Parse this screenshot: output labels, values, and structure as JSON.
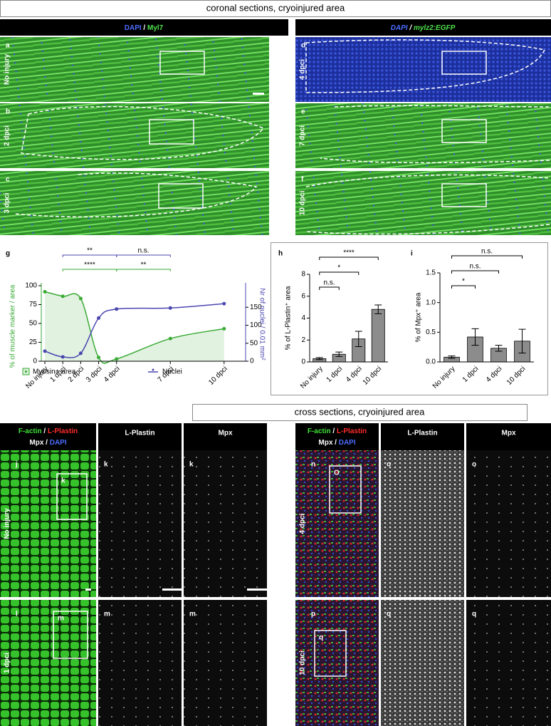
{
  "coronal": {
    "title": "coronal sections, cryoinjured area",
    "left_header": [
      "DAPI",
      " / ",
      "Myl7"
    ],
    "right_header": [
      "DAPI",
      " / ",
      "mylz2:EGFP"
    ],
    "panels": [
      {
        "letter": "a",
        "label": "No injury"
      },
      {
        "letter": "b",
        "label": "2 dpci"
      },
      {
        "letter": "c",
        "label": "3 dpci"
      },
      {
        "letter": "d",
        "label": "4 dpci"
      },
      {
        "letter": "e",
        "label": "7 dpci"
      },
      {
        "letter": "f",
        "label": "10 dpci"
      }
    ]
  },
  "chart_data": [
    {
      "type": "line",
      "panel": "g",
      "ylabel": "% of muscle marker / area",
      "y2label": "Nr of nuclei / 0.01 mm²",
      "x": [
        0,
        1,
        2,
        3,
        4,
        7,
        10
      ],
      "xlim": [
        -0.2,
        11.2
      ],
      "xticks": [
        {
          "value": 0,
          "label": "No injury"
        },
        {
          "value": 1,
          "label": "1 dpci"
        },
        {
          "value": 2,
          "label": "2 dpci"
        },
        {
          "value": 3,
          "label": "3 dpci"
        },
        {
          "value": 4,
          "label": "4 dpci"
        },
        {
          "value": 7,
          "label": "7 dpci"
        },
        {
          "value": 10,
          "label": "10 dpci"
        }
      ],
      "ylim": [
        0,
        100
      ],
      "yticks": [
        0,
        25,
        50,
        75,
        100
      ],
      "y2lim": [
        0,
        210
      ],
      "y2ticks": [
        0,
        50,
        100,
        150
      ],
      "series": [
        {
          "name": "Myosin+ area",
          "color": "#3aaa35",
          "values": [
            92,
            86,
            83,
            5,
            3,
            30,
            43
          ]
        },
        {
          "name": "Nuclei",
          "color": "#4b47b0",
          "axis": "y2",
          "values": [
            28,
            12,
            22,
            120,
            145,
            148,
            160
          ]
        }
      ],
      "annotations": [
        {
          "text": "**",
          "x": [
            1,
            4
          ],
          "color": "#4b47b0"
        },
        {
          "text": "n.s.",
          "x": [
            4,
            7
          ],
          "color": "#4b47b0"
        },
        {
          "text": "****",
          "x": [
            1,
            4
          ],
          "color": "#3aaa35"
        },
        {
          "text": "**",
          "x": [
            4,
            7
          ],
          "color": "#3aaa35"
        }
      ]
    },
    {
      "type": "bar",
      "panel": "h",
      "ylabel": "% of L-Plastin⁺ area",
      "categories": [
        "No injury",
        "1 dpci",
        "4 dpci",
        "10 dpci"
      ],
      "values": [
        0.3,
        0.7,
        2.1,
        4.8
      ],
      "errors": [
        0.1,
        0.2,
        0.7,
        0.4
      ],
      "color": "#8c8c8c",
      "ylim": [
        0,
        8
      ],
      "yticks": [
        0,
        2,
        4,
        6,
        8
      ],
      "annotations": [
        {
          "text": "n.s.",
          "between": [
            0,
            1
          ]
        },
        {
          "text": "*",
          "between": [
            0,
            2
          ]
        },
        {
          "text": "****",
          "between": [
            0,
            3
          ]
        }
      ]
    },
    {
      "type": "bar",
      "panel": "i",
      "ylabel": "% of Mpx⁺ area",
      "categories": [
        "No injury",
        "1 dpci",
        "4 dpci",
        "10 dpci"
      ],
      "values": [
        0.08,
        0.42,
        0.23,
        0.35
      ],
      "errors": [
        0.02,
        0.14,
        0.05,
        0.2
      ],
      "color": "#8c8c8c",
      "ylim": [
        0,
        1.5
      ],
      "yticks": [
        {
          "value": 0,
          "label": "0.0"
        },
        0.5,
        {
          "value": 1,
          "label": "1.0"
        },
        1.5
      ],
      "annotations": [
        {
          "text": "*",
          "between": [
            0,
            1
          ]
        },
        {
          "text": "n.s.",
          "between": [
            0,
            2
          ]
        },
        {
          "text": "n.s.",
          "between": [
            0,
            3
          ]
        }
      ]
    }
  ],
  "cross": {
    "title": "cross sections, cryoinjured area",
    "merge_header": [
      [
        "F-actin",
        " / ",
        "L-Plastin"
      ],
      [
        "Mpx",
        " / ",
        "DAPI"
      ]
    ],
    "channels": [
      "L-Plastin",
      "Mpx"
    ],
    "rows": [
      {
        "label": "No injury",
        "letters": [
          "j",
          "k",
          "k"
        ],
        "inset": "k"
      },
      {
        "label": "1 dpci",
        "letters": [
          "l",
          "m",
          "m"
        ],
        "inset": "m"
      },
      {
        "label": "4 dpci",
        "letters": [
          "n",
          "o",
          "o"
        ],
        "inset": "O"
      },
      {
        "label": "10 dpci",
        "letters": [
          "p",
          "q",
          "q"
        ],
        "inset": "q"
      }
    ]
  }
}
